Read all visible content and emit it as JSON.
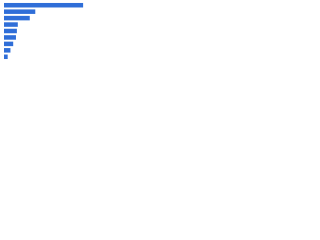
{
  "chart_data": {
    "type": "bar",
    "orientation": "horizontal",
    "categories": [
      null,
      null,
      null,
      null,
      null,
      null,
      null,
      null,
      null
    ],
    "values": [
      86,
      34,
      28,
      15,
      14,
      13,
      10,
      7,
      4
    ],
    "color": "#2f6ed8",
    "xlim": [
      0,
      100
    ]
  }
}
